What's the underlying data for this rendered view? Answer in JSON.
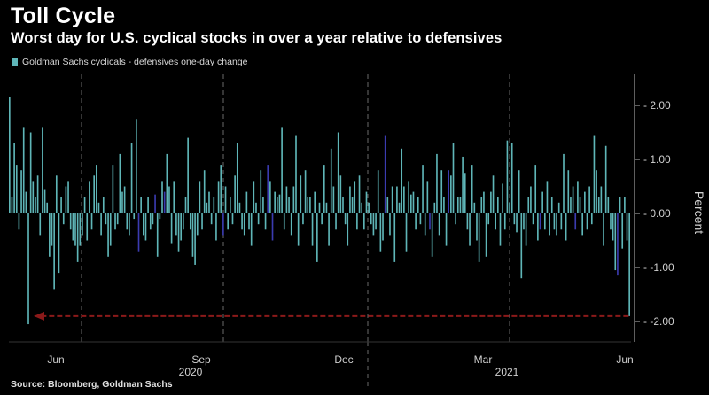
{
  "title": "Toll Cycle",
  "subtitle": "Worst day for U.S. cyclical stocks in over a year relative to defensives",
  "source": "Source: Bloomberg, Goldman Sachs",
  "colors": {
    "bar_up": "#5fb6b8",
    "bar_highlight": "#3b3bb0",
    "arrow": "#8b1a1a",
    "grid": "#6a6a6a",
    "axis": "#bbbbbb"
  },
  "chart_data": {
    "type": "bar",
    "ylabel": "Percent",
    "ylim": [
      -2.3,
      2.5
    ],
    "yticks": [
      2.0,
      1.0,
      0.0,
      -1.0,
      -2.0
    ],
    "ytick_labels": [
      "2.00",
      "1.00",
      "0.00",
      "-1.00",
      "-2.00"
    ],
    "xtick_labels": [
      "Jun",
      "Sep",
      "Dec",
      "Mar",
      "Jun"
    ],
    "year_labels": [
      "2020",
      "2021"
    ],
    "series": [
      {
        "name": "Goldman Sachs cyclicals - defensives one-day change",
        "values": [
          2.15,
          0.3,
          1.3,
          0.9,
          -0.3,
          0.8,
          1.6,
          0.4,
          -2.05,
          1.5,
          0.6,
          0.3,
          0.7,
          -0.4,
          1.6,
          0.45,
          0.2,
          -0.8,
          -0.6,
          -1.4,
          0.7,
          -1.1,
          0.3,
          -0.2,
          0.5,
          0.6,
          -0.3,
          -0.5,
          -0.6,
          -0.9,
          -0.6,
          -0.4,
          0.3,
          -0.5,
          0.6,
          -0.3,
          0.7,
          0.9,
          0.2,
          -0.4,
          0.3,
          -0.2,
          -0.8,
          -0.6,
          0.9,
          -0.3,
          -0.2,
          1.1,
          0.4,
          0.5,
          -0.3,
          -0.4,
          1.3,
          -0.1,
          1.75,
          -0.7,
          0.3,
          -0.4,
          -0.5,
          0.3,
          -0.3,
          -0.2,
          0.35,
          -0.8,
          -0.1,
          0.6,
          0.4,
          1.1,
          0.5,
          -0.55,
          0.6,
          -0.4,
          -0.7,
          -0.5,
          -0.3,
          0.3,
          1.4,
          -0.3,
          -0.8,
          -0.95,
          -0.4,
          0.6,
          -0.3,
          0.8,
          0.2,
          0.4,
          -0.2,
          0.3,
          -0.5,
          0.6,
          0.9,
          -0.4,
          0.5,
          -0.3,
          0.3,
          -0.2,
          0.7,
          1.3,
          0.2,
          -0.3,
          -0.4,
          0.4,
          -0.3,
          -0.6,
          0.6,
          0.2,
          -0.2,
          0.8,
          0.3,
          -0.3,
          0.9,
          0.6,
          -0.5,
          0.4,
          0.3,
          0.35,
          1.6,
          -0.3,
          0.5,
          0.3,
          -0.4,
          0.5,
          1.45,
          -0.6,
          0.7,
          -0.2,
          0.8,
          0.3,
          0.3,
          -0.6,
          0.4,
          -0.9,
          0.2,
          -0.2,
          0.9,
          0.2,
          -0.6,
          1.2,
          0.5,
          -0.3,
          1.5,
          0.7,
          0.3,
          -0.2,
          -0.6,
          0.5,
          0.3,
          0.6,
          -0.3,
          0.7,
          0.2,
          -0.3,
          0.4,
          0.2,
          -0.2,
          -0.4,
          -0.3,
          0.8,
          -0.7,
          -0.5,
          1.45,
          0.3,
          -0.4,
          0.5,
          -0.9,
          0.5,
          0.2,
          1.2,
          0.5,
          -0.7,
          0.6,
          0.35,
          0.4,
          -0.3,
          0.3,
          -0.2,
          0.9,
          -0.4,
          0.6,
          -0.3,
          -0.8,
          0.2,
          1.1,
          -0.4,
          0.8,
          0.3,
          -0.6,
          0.8,
          0.7,
          1.3,
          -0.2,
          0.3,
          0.3,
          1.05,
          0.75,
          -0.3,
          -0.6,
          0.9,
          0.2,
          -0.5,
          -0.9,
          0.3,
          0.4,
          -0.8,
          -0.2,
          0.4,
          0.7,
          -0.3,
          0.3,
          -0.6,
          0.55,
          -0.3,
          1.35,
          0.2,
          1.3,
          -0.2,
          -0.35,
          0.8,
          -1.2,
          -0.3,
          -0.6,
          0.3,
          0.5,
          -0.2,
          0.9,
          -0.5,
          -0.3,
          0.4,
          -0.3,
          0.6,
          -0.4,
          0.3,
          -0.3,
          -0.4,
          0.2,
          -0.3,
          1.1,
          -0.5,
          0.8,
          0.3,
          0.5,
          -0.3,
          0.6,
          0.3,
          -0.4,
          0.4,
          -0.3,
          0.5,
          -0.2,
          1.45,
          0.8,
          0.3,
          0.5,
          -0.6,
          1.25,
          0.3,
          -0.3,
          -0.5,
          -1.05,
          -1.15,
          0.3,
          -0.65,
          0.3,
          -0.5,
          -1.9
        ]
      }
    ],
    "highlighted_indices": [
      55,
      62,
      66,
      91,
      110,
      112,
      160,
      179,
      187,
      226,
      241,
      259
    ],
    "annotation": "arrow from last bar back to the prior low",
    "grid": "vertical dashed lines at quarter boundaries",
    "legend_position": "top-left"
  }
}
